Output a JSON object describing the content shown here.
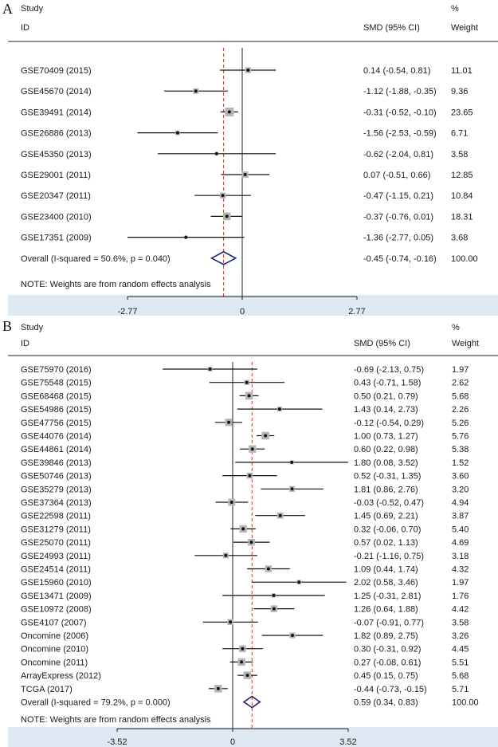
{
  "chart_data": [
    {
      "type": "forest",
      "panel": "A",
      "header": {
        "study": "Study",
        "id": "ID",
        "smd": "SMD (95% CI)",
        "pct": "%",
        "weight": "Weight"
      },
      "studies": [
        {
          "label": "GSE70409 (2015)",
          "est": 0.14,
          "lo": -0.54,
          "hi": 0.81,
          "ci_text": "0.14 (-0.54, 0.81)",
          "weight": "11.01",
          "w": 11.01
        },
        {
          "label": "GSE45670 (2014)",
          "est": -1.12,
          "lo": -1.88,
          "hi": -0.35,
          "ci_text": "-1.12 (-1.88, -0.35)",
          "weight": "9.36",
          "w": 9.36
        },
        {
          "label": "GSE39491 (2014)",
          "est": -0.31,
          "lo": -0.52,
          "hi": -0.1,
          "ci_text": "-0.31 (-0.52, -0.10)",
          "weight": "23.65",
          "w": 23.65
        },
        {
          "label": "GSE26886 (2013)",
          "est": -1.56,
          "lo": -2.53,
          "hi": -0.59,
          "ci_text": "-1.56 (-2.53, -0.59)",
          "weight": "6.71",
          "w": 6.71
        },
        {
          "label": "GSE45350 (2013)",
          "est": -0.62,
          "lo": -2.04,
          "hi": 0.81,
          "ci_text": "-0.62 (-2.04, 0.81)",
          "weight": "3.58",
          "w": 3.58
        },
        {
          "label": "GSE29001 (2011)",
          "est": 0.07,
          "lo": -0.51,
          "hi": 0.66,
          "ci_text": "0.07 (-0.51, 0.66)",
          "weight": "12.85",
          "w": 12.85
        },
        {
          "label": "GSE20347 (2011)",
          "est": -0.47,
          "lo": -1.15,
          "hi": 0.21,
          "ci_text": "-0.47 (-1.15, 0.21)",
          "weight": "10.84",
          "w": 10.84
        },
        {
          "label": "GSE23400 (2010)",
          "est": -0.37,
          "lo": -0.76,
          "hi": 0.01,
          "ci_text": "-0.37 (-0.76, 0.01)",
          "weight": "18.31",
          "w": 18.31
        },
        {
          "label": "GSE17351 (2009)",
          "est": -1.36,
          "lo": -2.77,
          "hi": 0.05,
          "ci_text": "-1.36 (-2.77, 0.05)",
          "weight": "3.68",
          "w": 3.68
        }
      ],
      "overall": {
        "label": "Overall  (I-squared = 50.6%, p = 0.040)",
        "est": -0.45,
        "lo": -0.74,
        "hi": -0.16,
        "ci_text": "-0.45 (-0.74, -0.16)",
        "weight": "100.00"
      },
      "note": "NOTE: Weights are from random effects analysis",
      "axis": {
        "min": -2.77,
        "max": 2.77,
        "ticks": [
          {
            "v": -2.77,
            "t": "-2.77"
          },
          {
            "v": 0,
            "t": "0"
          },
          {
            "v": 2.77,
            "t": "2.77"
          }
        ]
      }
    },
    {
      "type": "forest",
      "panel": "B",
      "header": {
        "study": "Study",
        "id": "ID",
        "smd": "SMD (95% CI)",
        "pct": "%",
        "weight": "Weight"
      },
      "studies": [
        {
          "label": "GSE75970 (2016)",
          "est": -0.69,
          "lo": -2.13,
          "hi": 0.75,
          "ci_text": "-0.69 (-2.13, 0.75)",
          "weight": "1.97",
          "w": 1.97
        },
        {
          "label": "GSE75548 (2015)",
          "est": 0.43,
          "lo": -0.71,
          "hi": 1.58,
          "ci_text": "0.43 (-0.71, 1.58)",
          "weight": "2.62",
          "w": 2.62
        },
        {
          "label": "GSE68468 (2015)",
          "est": 0.5,
          "lo": 0.21,
          "hi": 0.79,
          "ci_text": "0.50 (0.21, 0.79)",
          "weight": "5.68",
          "w": 5.68
        },
        {
          "label": "GSE54986 (2015)",
          "est": 1.43,
          "lo": 0.14,
          "hi": 2.73,
          "ci_text": "1.43 (0.14, 2.73)",
          "weight": "2.26",
          "w": 2.26
        },
        {
          "label": "GSE47756 (2015)",
          "est": -0.12,
          "lo": -0.54,
          "hi": 0.29,
          "ci_text": "-0.12 (-0.54, 0.29)",
          "weight": "5.26",
          "w": 5.26
        },
        {
          "label": "GSE44076 (2014)",
          "est": 1.0,
          "lo": 0.73,
          "hi": 1.27,
          "ci_text": "1.00 (0.73, 1.27)",
          "weight": "5.76",
          "w": 5.76
        },
        {
          "label": "GSE44861 (2014)",
          "est": 0.6,
          "lo": 0.22,
          "hi": 0.98,
          "ci_text": "0.60 (0.22, 0.98)",
          "weight": "5.38",
          "w": 5.38
        },
        {
          "label": "GSE39846 (2013)",
          "est": 1.8,
          "lo": 0.08,
          "hi": 3.52,
          "ci_text": "1.80 (0.08, 3.52)",
          "weight": "1.52",
          "w": 1.52
        },
        {
          "label": "GSE50746 (2013)",
          "est": 0.52,
          "lo": -0.31,
          "hi": 1.35,
          "ci_text": "0.52 (-0.31, 1.35)",
          "weight": "3.60",
          "w": 3.6
        },
        {
          "label": "GSE35279 (2013)",
          "est": 1.81,
          "lo": 0.86,
          "hi": 2.76,
          "ci_text": "1.81 (0.86, 2.76)",
          "weight": "3.20",
          "w": 3.2
        },
        {
          "label": "GSE37364 (2013)",
          "est": -0.03,
          "lo": -0.52,
          "hi": 0.47,
          "ci_text": "-0.03 (-0.52, 0.47)",
          "weight": "4.94",
          "w": 4.94
        },
        {
          "label": "GSE22598 (2011)",
          "est": 1.45,
          "lo": 0.69,
          "hi": 2.21,
          "ci_text": "1.45 (0.69, 2.21)",
          "weight": "3.87",
          "w": 3.87
        },
        {
          "label": "GSE31279 (2011)",
          "est": 0.32,
          "lo": -0.06,
          "hi": 0.7,
          "ci_text": "0.32 (-0.06, 0.70)",
          "weight": "5.40",
          "w": 5.4
        },
        {
          "label": "GSE25070 (2011)",
          "est": 0.57,
          "lo": 0.02,
          "hi": 1.13,
          "ci_text": "0.57 (0.02, 1.13)",
          "weight": "4.69",
          "w": 4.69
        },
        {
          "label": "GSE24993 (2011)",
          "est": -0.21,
          "lo": -1.16,
          "hi": 0.75,
          "ci_text": "-0.21 (-1.16, 0.75)",
          "weight": "3.18",
          "w": 3.18
        },
        {
          "label": "GSE24514 (2011)",
          "est": 1.09,
          "lo": 0.44,
          "hi": 1.74,
          "ci_text": "1.09 (0.44, 1.74)",
          "weight": "4.32",
          "w": 4.32
        },
        {
          "label": "GSE15960 (2010)",
          "est": 2.02,
          "lo": 0.58,
          "hi": 3.46,
          "ci_text": "2.02 (0.58, 3.46)",
          "weight": "1.97",
          "w": 1.97
        },
        {
          "label": "GSE13471 (2009)",
          "est": 1.25,
          "lo": -0.31,
          "hi": 2.81,
          "ci_text": "1.25 (-0.31, 2.81)",
          "weight": "1.76",
          "w": 1.76
        },
        {
          "label": "GSE10972 (2008)",
          "est": 1.26,
          "lo": 0.64,
          "hi": 1.88,
          "ci_text": "1.26 (0.64, 1.88)",
          "weight": "4.42",
          "w": 4.42
        },
        {
          "label": "GSE4107 (2007)",
          "est": -0.07,
          "lo": -0.91,
          "hi": 0.77,
          "ci_text": "-0.07 (-0.91, 0.77)",
          "weight": "3.58",
          "w": 3.58
        },
        {
          "label": "Oncomine (2006)",
          "est": 1.82,
          "lo": 0.89,
          "hi": 2.75,
          "ci_text": "1.82 (0.89, 2.75)",
          "weight": "3.26",
          "w": 3.26
        },
        {
          "label": "Oncomine (2010)",
          "est": 0.3,
          "lo": -0.31,
          "hi": 0.92,
          "ci_text": "0.30 (-0.31, 0.92)",
          "weight": "4.45",
          "w": 4.45
        },
        {
          "label": "Oncomine (2011)",
          "est": 0.27,
          "lo": -0.08,
          "hi": 0.61,
          "ci_text": "0.27 (-0.08, 0.61)",
          "weight": "5.51",
          "w": 5.51
        },
        {
          "label": "ArrayExpress (2012)",
          "est": 0.45,
          "lo": 0.15,
          "hi": 0.75,
          "ci_text": "0.45 (0.15, 0.75)",
          "weight": "5.68",
          "w": 5.68
        },
        {
          "label": "TCGA (2017)",
          "est": -0.44,
          "lo": -0.73,
          "hi": -0.15,
          "ci_text": "-0.44 (-0.73, -0.15)",
          "weight": "5.71",
          "w": 5.71
        }
      ],
      "overall": {
        "label": "Overall  (I-squared = 79.2%, p = 0.000)",
        "est": 0.59,
        "lo": 0.34,
        "hi": 0.83,
        "ci_text": "0.59 (0.34, 0.83)",
        "weight": "100.00"
      },
      "note": "NOTE: Weights are from random effects analysis",
      "axis": {
        "min": -3.52,
        "max": 3.52,
        "ticks": [
          {
            "v": -3.52,
            "t": "-3.52"
          },
          {
            "v": 0,
            "t": "0"
          },
          {
            "v": 3.52,
            "t": "3.52"
          }
        ]
      }
    }
  ],
  "colors": {
    "diamond": "#1a237e",
    "box": "#b5b5b5",
    "ref_line": "#c0392b",
    "axis_band": "#dfe9f3",
    "ink": "#111111"
  }
}
